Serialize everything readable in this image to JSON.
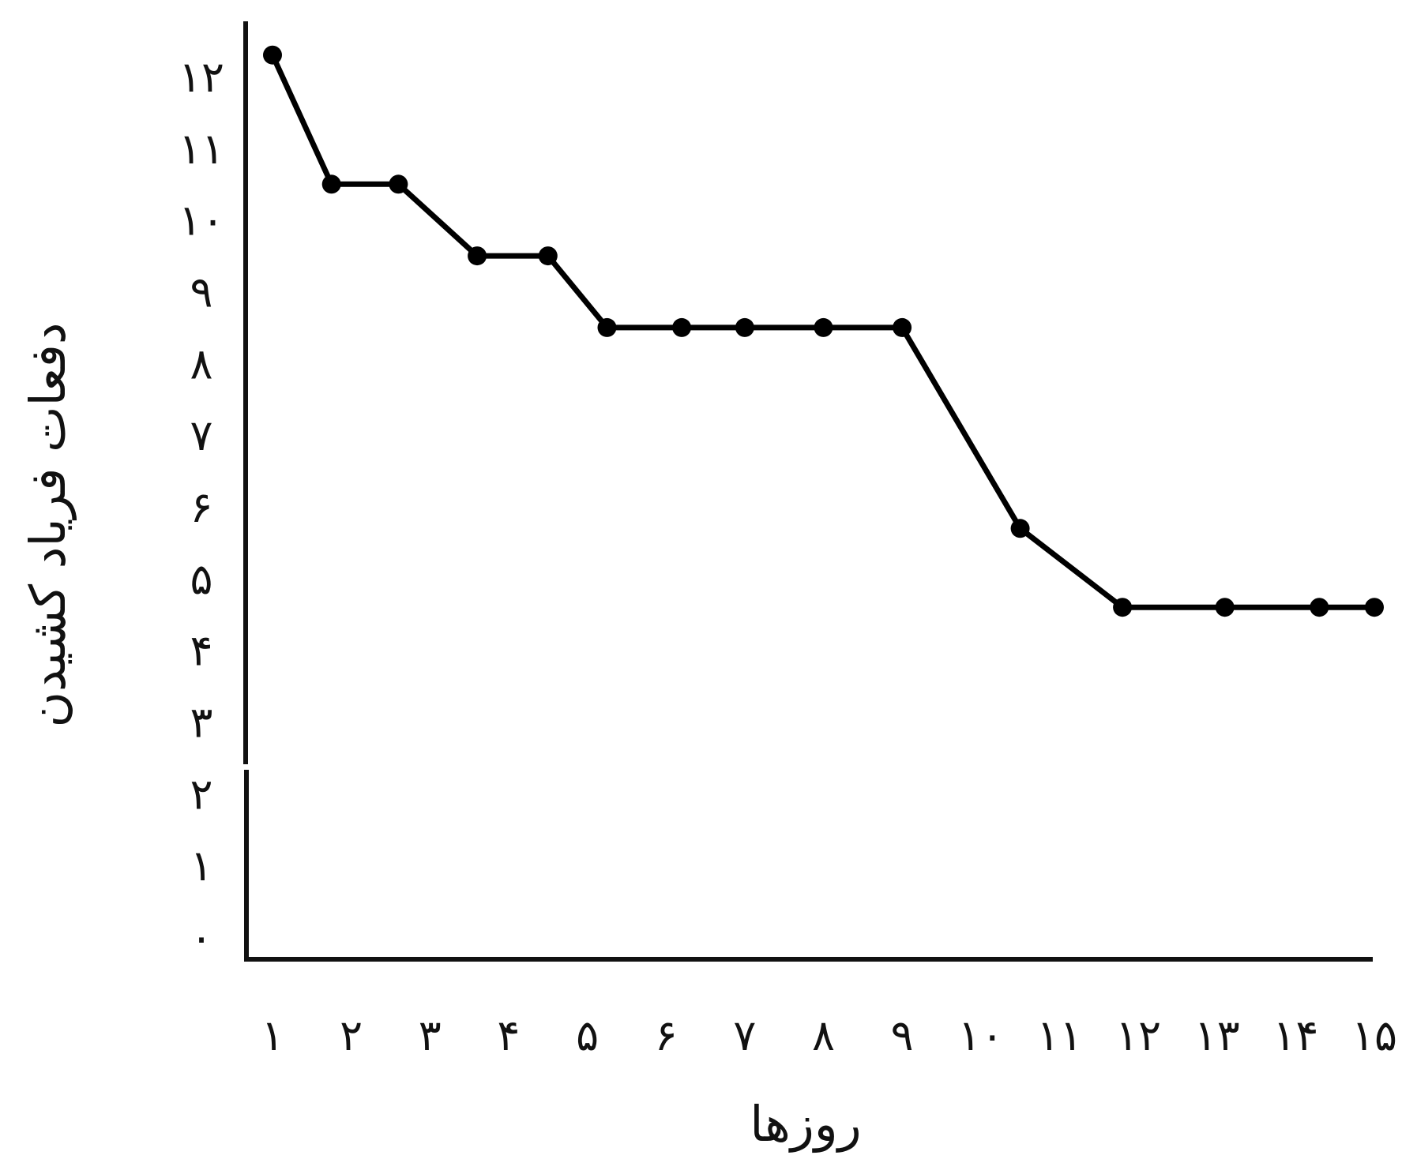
{
  "chart_data": {
    "type": "line",
    "title": "",
    "xlabel": "روزها",
    "ylabel": "دفعات فریاد کشیدن",
    "x_ticks": [
      "۱",
      "۲",
      "۳",
      "۴",
      "۵",
      "۶",
      "۷",
      "۸",
      "۹",
      "۱۰",
      "۱۱",
      "۱۲",
      "۱۳",
      "۱۴",
      "۱۵"
    ],
    "y_ticks": [
      "۰",
      "۱",
      "۲",
      "۳",
      "۴",
      "۵",
      "۶",
      "۷",
      "۸",
      "۹",
      "۱۰",
      "۱۱",
      "۱۲"
    ],
    "xlim": [
      1,
      15
    ],
    "ylim": [
      0,
      12
    ],
    "grid": false,
    "series": [
      {
        "points": [
          {
            "x": 1,
            "y": 12.3
          },
          {
            "x": 1.75,
            "y": 10.5
          },
          {
            "x": 2.6,
            "y": 10.5
          },
          {
            "x": 3.6,
            "y": 9.5
          },
          {
            "x": 4.5,
            "y": 9.5
          },
          {
            "x": 5.25,
            "y": 8.5
          },
          {
            "x": 6.2,
            "y": 8.5
          },
          {
            "x": 7.0,
            "y": 8.5
          },
          {
            "x": 8.0,
            "y": 8.5
          },
          {
            "x": 9.0,
            "y": 8.5
          },
          {
            "x": 10.5,
            "y": 5.7
          },
          {
            "x": 11.8,
            "y": 4.6
          },
          {
            "x": 13.1,
            "y": 4.6
          },
          {
            "x": 14.3,
            "y": 4.6
          },
          {
            "x": 15.0,
            "y": 4.6
          }
        ]
      }
    ],
    "colors": {
      "line": "#000000",
      "axis": "#111111"
    }
  }
}
